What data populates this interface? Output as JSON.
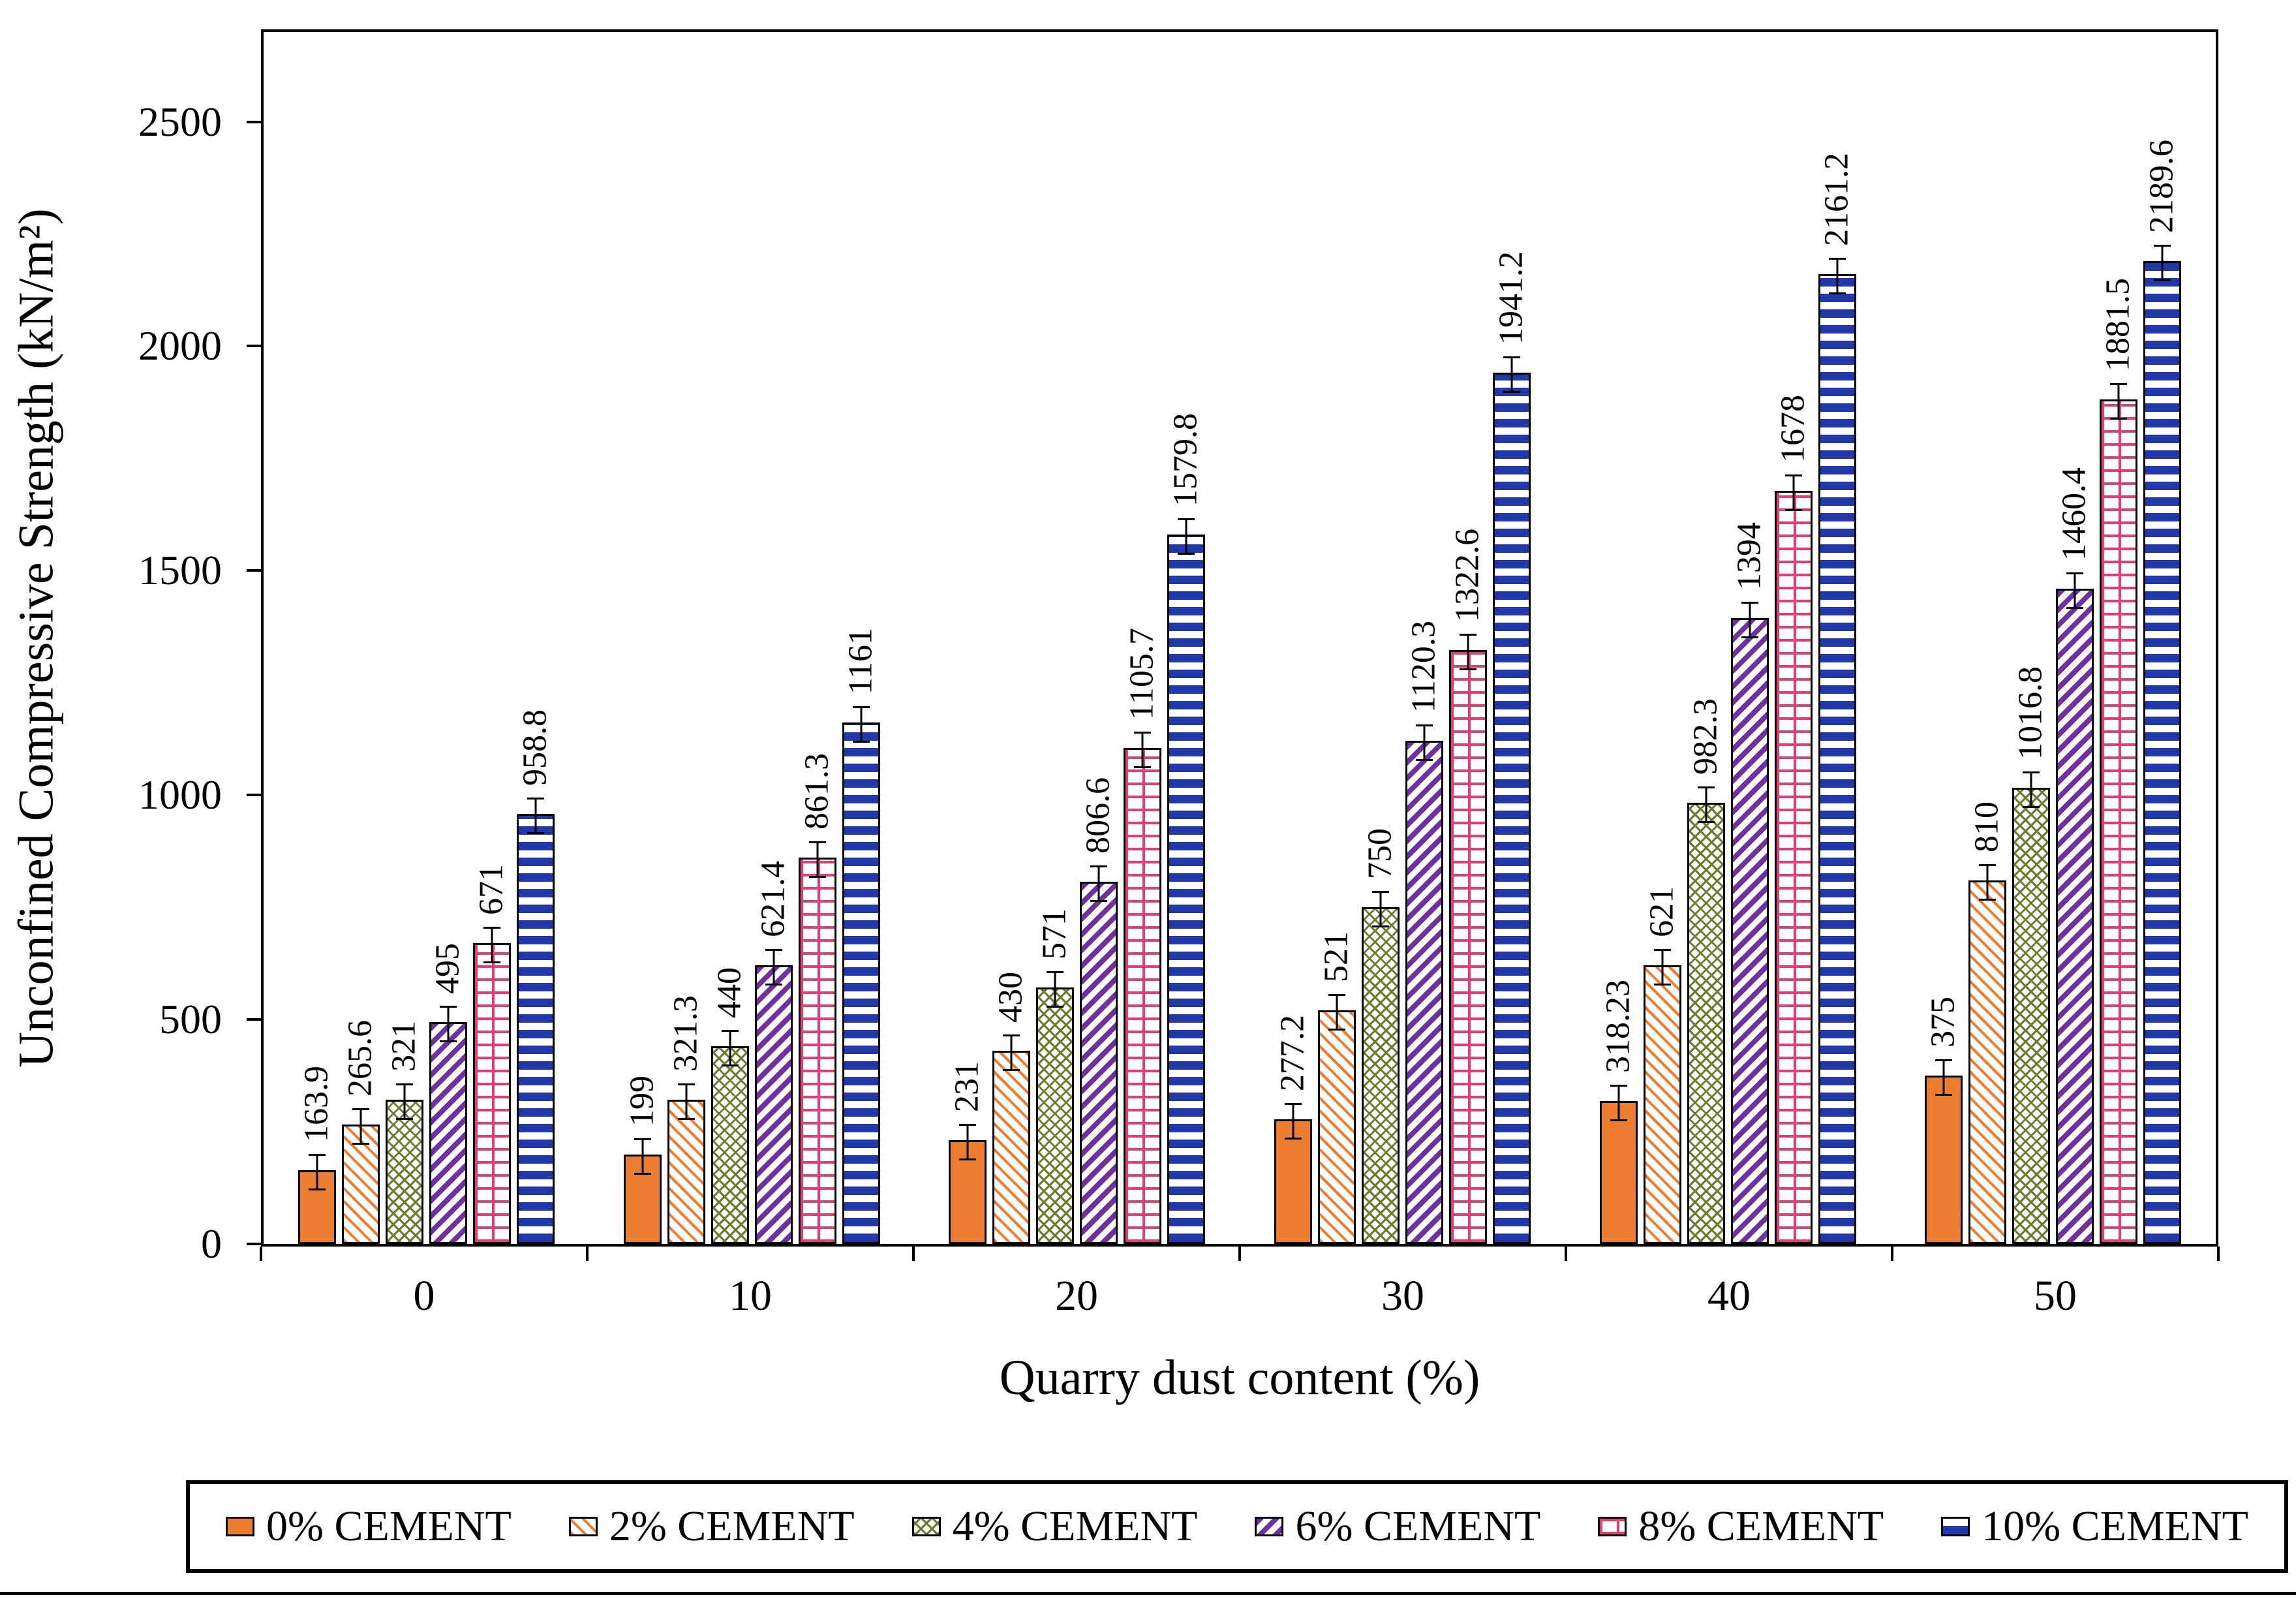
{
  "chart_data": {
    "type": "bar",
    "title": "",
    "xlabel": "Quarry dust content (%)",
    "ylabel": "Unconfined Compressive Strength (kN/m²)",
    "categories": [
      "0",
      "10",
      "20",
      "30",
      "40",
      "50"
    ],
    "series": [
      {
        "name": "0% CEMENT",
        "pattern": "solid",
        "color": "#ED7D31",
        "values": [
          163.9,
          199,
          231,
          277.2,
          318.23,
          375
        ]
      },
      {
        "name": "2% CEMENT",
        "pattern": "diagonal-hatch",
        "color": "#ED7D31",
        "values": [
          265.6,
          321.3,
          430,
          521,
          621,
          810
        ]
      },
      {
        "name": "4% CEMENT",
        "pattern": "crosshatch",
        "color": "#6B7C2F",
        "values": [
          321,
          440,
          571,
          750,
          982.3,
          1016.8
        ]
      },
      {
        "name": "6% CEMENT",
        "pattern": "diagonal-hatch-reverse",
        "color": "#7030A0",
        "values": [
          495,
          621.4,
          806.6,
          1120.3,
          1394,
          1460.4
        ]
      },
      {
        "name": "8% CEMENT",
        "pattern": "brick",
        "color": "#E23D77",
        "values": [
          671,
          861.3,
          1105.7,
          1322.6,
          1678,
          1881.5
        ]
      },
      {
        "name": "10% CEMENT",
        "pattern": "horizontal-stripes",
        "color": "#2038A8",
        "values": [
          958.8,
          1161,
          1579.8,
          1941.2,
          2161.2,
          2189.6
        ]
      }
    ],
    "ylim": [
      0,
      2700
    ],
    "yticks": [
      0,
      500,
      1000,
      1500,
      2000,
      2500
    ],
    "error_bars": true,
    "bar_value_labels_rotated": true,
    "grid": false,
    "legend_position": "bottom"
  }
}
